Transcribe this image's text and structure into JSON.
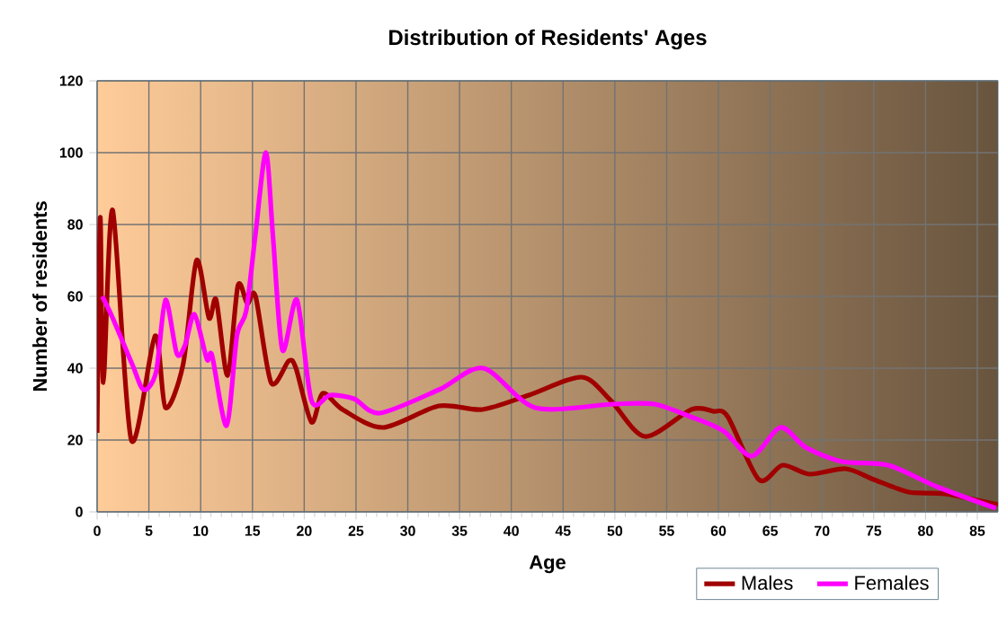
{
  "chart_data": {
    "type": "line",
    "title": "Distribution of Residents' Ages",
    "xlabel": "Age",
    "ylabel": "Number of residents",
    "xlim": [
      0,
      87
    ],
    "xticks": [
      0,
      5,
      10,
      15,
      20,
      25,
      30,
      35,
      40,
      45,
      50,
      55,
      60,
      65,
      70,
      75,
      80,
      85
    ],
    "ylim": [
      0,
      120
    ],
    "yticks": [
      0,
      20,
      40,
      60,
      80,
      100,
      120
    ],
    "grid": true,
    "legend": "bottom right",
    "marker": "none",
    "line_style": "solid",
    "series": [
      {
        "name": "Males",
        "color": "#a00000",
        "x": [
          0,
          0.3,
          0.6,
          1.5,
          3.3,
          5.6,
          6.6,
          8.3,
          9.6,
          10.8,
          11.5,
          12.6,
          13.6,
          14.5,
          15.3,
          16.8,
          18.5,
          19.2,
          20.7,
          21.8,
          23.7,
          27.6,
          33,
          37.2,
          41.7,
          46.8,
          49.6,
          52.9,
          57.4,
          59.5,
          60.9,
          63.9,
          66.2,
          68.8,
          72.3,
          75,
          78.4,
          81.9,
          87
        ],
        "values": [
          22,
          82,
          36,
          84,
          20,
          49,
          29,
          41,
          70,
          54,
          59,
          38,
          63,
          58,
          60,
          36,
          42,
          40,
          25,
          33,
          28.5,
          23.5,
          29.5,
          28.5,
          32.5,
          37.5,
          31,
          21,
          28.5,
          28,
          26.5,
          9,
          13,
          10.5,
          12,
          9,
          5.5,
          5,
          2
        ]
      },
      {
        "name": "Females",
        "color": "#ff00ff",
        "x": [
          0.5,
          1.5,
          3.4,
          4.5,
          5.7,
          6.6,
          7.7,
          8.5,
          9.4,
          10.6,
          11.1,
          12.5,
          13.5,
          14.4,
          15.3,
          16.3,
          17,
          17.9,
          19.3,
          20.7,
          22.5,
          24.8,
          27.3,
          33,
          37.3,
          42.3,
          49.8,
          53.8,
          57.3,
          60.5,
          63.2,
          66,
          68.4,
          71.9,
          76.4,
          81.1,
          86.8
        ],
        "values": [
          60,
          54,
          41,
          34,
          39,
          59,
          44,
          46.5,
          55,
          42.5,
          43.5,
          24,
          49,
          56,
          77.5,
          100,
          76,
          45,
          59,
          31,
          32.5,
          31.5,
          27.5,
          34,
          40,
          29,
          30,
          30,
          26.5,
          22.5,
          15.5,
          23.5,
          18,
          14,
          13,
          7,
          1
        ]
      }
    ]
  }
}
